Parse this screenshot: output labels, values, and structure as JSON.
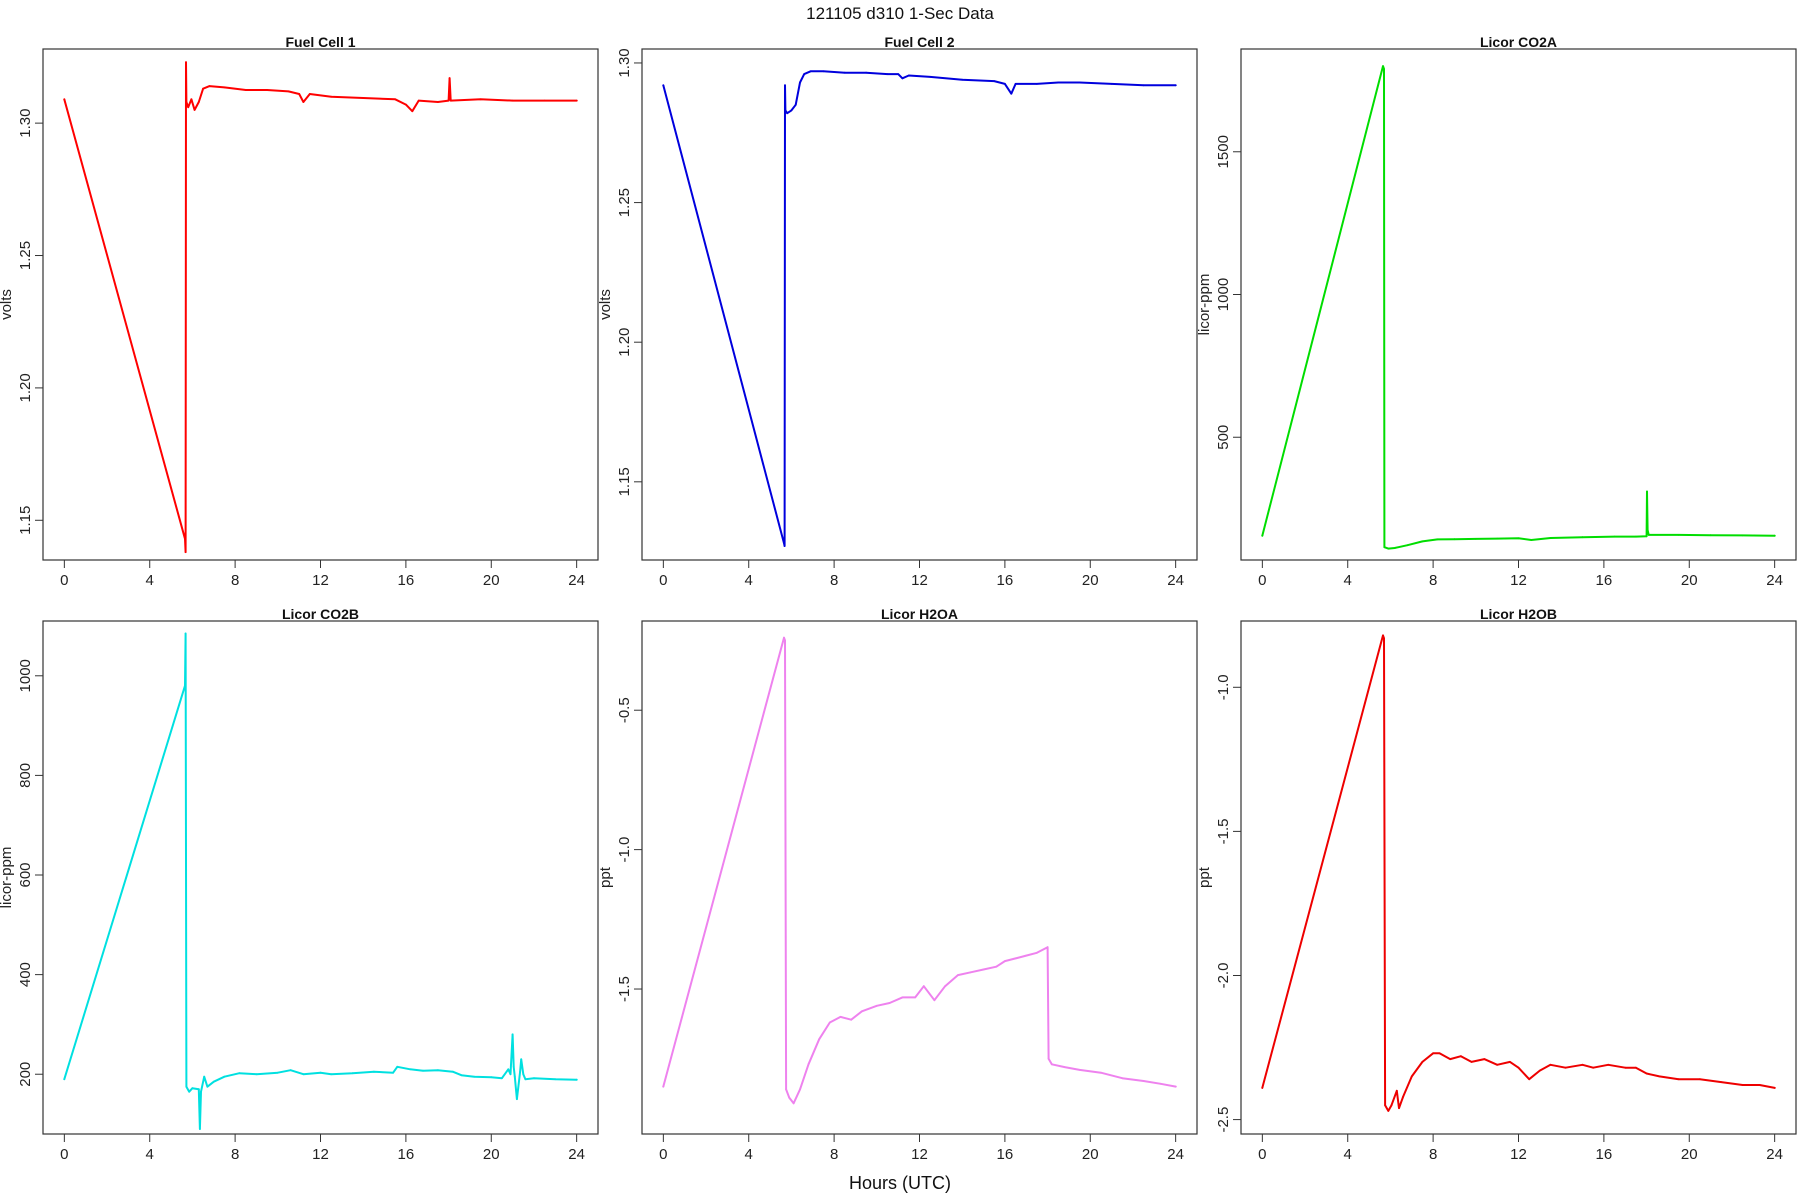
{
  "figure": {
    "title": "121105   d310   1-Sec Data",
    "xlabel": "Hours (UTC)"
  },
  "chart_data": [
    {
      "type": "line",
      "title": "Fuel Cell 1",
      "ylabel": "volts",
      "color": "#ff0000",
      "xlim": [
        -1,
        25
      ],
      "ylim": [
        1.135,
        1.328
      ],
      "xticks": [
        0,
        4,
        8,
        12,
        16,
        20,
        24
      ],
      "yticks": [
        1.15,
        1.2,
        1.25,
        1.3
      ],
      "ytick_labels": [
        "1.15",
        "1.20",
        "1.25",
        "1.30"
      ],
      "series": [
        {
          "x": [
            0,
            5.65,
            5.68,
            5.7,
            5.72,
            5.8,
            5.95,
            6.1,
            6.3,
            6.5,
            6.8,
            7.5,
            8.5,
            9.5,
            10.5,
            11.0,
            11.2,
            11.5,
            12.5,
            14.0,
            15.5,
            16.0,
            16.3,
            16.6,
            17.5,
            18.0,
            18.05,
            18.1,
            19.5,
            21,
            22.5,
            24
          ],
          "y": [
            1.309,
            1.143,
            1.138,
            1.323,
            1.308,
            1.306,
            1.309,
            1.305,
            1.308,
            1.313,
            1.314,
            1.3135,
            1.3125,
            1.3125,
            1.312,
            1.311,
            1.308,
            1.311,
            1.31,
            1.3095,
            1.309,
            1.307,
            1.3045,
            1.3085,
            1.308,
            1.3085,
            1.317,
            1.3085,
            1.309,
            1.3085,
            1.3085,
            1.3085
          ]
        }
      ]
    },
    {
      "type": "line",
      "title": "Fuel Cell 2",
      "ylabel": "volts",
      "color": "#0000dd",
      "xlim": [
        -1,
        25
      ],
      "ylim": [
        1.122,
        1.305
      ],
      "xticks": [
        0,
        4,
        8,
        12,
        16,
        20,
        24
      ],
      "yticks": [
        1.15,
        1.2,
        1.25,
        1.3
      ],
      "ytick_labels": [
        "1.15",
        "1.20",
        "1.25",
        "1.30"
      ],
      "series": [
        {
          "x": [
            0,
            5.65,
            5.68,
            5.7,
            5.72,
            5.8,
            6.0,
            6.2,
            6.4,
            6.6,
            6.9,
            7.5,
            8.5,
            9.5,
            10.5,
            11.0,
            11.2,
            11.5,
            12.5,
            14.0,
            15.5,
            16.0,
            16.3,
            16.5,
            17.5,
            18.5,
            19.5,
            21,
            22.5,
            24
          ],
          "y": [
            1.292,
            1.128,
            1.127,
            1.292,
            1.283,
            1.282,
            1.283,
            1.285,
            1.293,
            1.296,
            1.297,
            1.297,
            1.2965,
            1.2965,
            1.296,
            1.296,
            1.2945,
            1.2955,
            1.295,
            1.294,
            1.2935,
            1.2925,
            1.289,
            1.2925,
            1.2925,
            1.293,
            1.293,
            1.2925,
            1.292,
            1.292
          ]
        }
      ]
    },
    {
      "type": "line",
      "title": "Licor CO2A",
      "ylabel": "licor-ppm",
      "color": "#00dd00",
      "xlim": [
        -1,
        25
      ],
      "ylim": [
        70,
        1860
      ],
      "xticks": [
        0,
        4,
        8,
        12,
        16,
        20,
        24
      ],
      "yticks": [
        500,
        1000,
        1500
      ],
      "ytick_labels": [
        "500",
        "1000",
        "1500"
      ],
      "series": [
        {
          "x": [
            0,
            5.65,
            5.7,
            5.72,
            5.9,
            6.2,
            6.8,
            7.5,
            8.2,
            9.0,
            10,
            11,
            12,
            12.6,
            13.5,
            15,
            16.5,
            17.5,
            18.0,
            18.02,
            18.05,
            18.1,
            19.5,
            21,
            22.5,
            24
          ],
          "y": [
            155,
            1800,
            1790,
            115,
            110,
            112,
            122,
            135,
            142,
            143,
            144,
            145,
            146,
            140,
            147,
            150,
            152,
            152,
            153,
            310,
            175,
            158,
            158,
            157,
            156,
            155
          ]
        }
      ]
    },
    {
      "type": "line",
      "title": "Licor CO2B",
      "ylabel": "licor-ppm",
      "color": "#00e0e0",
      "xlim": [
        -1,
        25
      ],
      "ylim": [
        80,
        1110
      ],
      "xticks": [
        0,
        4,
        8,
        12,
        16,
        20,
        24
      ],
      "yticks": [
        200,
        400,
        600,
        800,
        1000
      ],
      "ytick_labels": [
        "200",
        "400",
        "600",
        "800",
        "1000"
      ],
      "series": [
        {
          "x": [
            0,
            5.65,
            5.68,
            5.72,
            5.85,
            6.0,
            6.3,
            6.35,
            6.4,
            6.55,
            6.7,
            7.0,
            7.5,
            8.2,
            9.0,
            10,
            10.6,
            11.2,
            12.0,
            12.5,
            13.5,
            14.5,
            15.4,
            15.6,
            16.2,
            16.8,
            17.5,
            18.2,
            18.6,
            19.2,
            20.0,
            20.5,
            20.8,
            20.9,
            21.0,
            21.05,
            21.1,
            21.2,
            21.35,
            21.4,
            21.5,
            21.6,
            22.0,
            23.0,
            24
          ],
          "y": [
            190,
            980,
            1085,
            175,
            165,
            172,
            170,
            90,
            165,
            195,
            175,
            185,
            195,
            202,
            200,
            203,
            208,
            200,
            203,
            200,
            202,
            205,
            203,
            215,
            210,
            207,
            208,
            205,
            198,
            195,
            194,
            192,
            210,
            200,
            280,
            215,
            195,
            150,
            205,
            230,
            200,
            190,
            192,
            190,
            189
          ]
        }
      ]
    },
    {
      "type": "line",
      "title": "Licor H2OA",
      "ylabel": "ppt",
      "color": "#ee82ee",
      "xlim": [
        -1,
        25
      ],
      "ylim": [
        -2.02,
        -0.18
      ],
      "xticks": [
        0,
        4,
        8,
        12,
        16,
        20,
        24
      ],
      "yticks": [
        -1.5,
        -1.0,
        -0.5
      ],
      "ytick_labels": [
        "-1.5",
        "-1.0",
        "-0.5"
      ],
      "series": [
        {
          "x": [
            0,
            5.65,
            5.7,
            5.75,
            5.9,
            6.1,
            6.4,
            6.8,
            7.3,
            7.8,
            8.3,
            8.8,
            9.3,
            10.0,
            10.6,
            11.2,
            11.8,
            12.2,
            12.7,
            13.2,
            13.8,
            14.4,
            15.0,
            15.6,
            16.0,
            16.5,
            17.0,
            17.5,
            18.0,
            18.05,
            18.2,
            18.8,
            19.5,
            20.5,
            21.5,
            22.5,
            23.3,
            24
          ],
          "y": [
            -1.85,
            -0.24,
            -0.25,
            -1.86,
            -1.89,
            -1.91,
            -1.86,
            -1.77,
            -1.68,
            -1.62,
            -1.6,
            -1.61,
            -1.58,
            -1.56,
            -1.55,
            -1.53,
            -1.53,
            -1.49,
            -1.54,
            -1.49,
            -1.45,
            -1.44,
            -1.43,
            -1.42,
            -1.4,
            -1.39,
            -1.38,
            -1.37,
            -1.35,
            -1.75,
            -1.77,
            -1.78,
            -1.79,
            -1.8,
            -1.82,
            -1.83,
            -1.84,
            -1.85
          ]
        }
      ]
    },
    {
      "type": "line",
      "title": "Licor H2OB",
      "ylabel": "ppt",
      "color": "#ee0000",
      "xlim": [
        -1,
        25
      ],
      "ylim": [
        -2.55,
        -0.77
      ],
      "xticks": [
        0,
        4,
        8,
        12,
        16,
        20,
        24
      ],
      "yticks": [
        -2.5,
        -2.0,
        -1.5,
        -1.0
      ],
      "ytick_labels": [
        "-2.5",
        "-2.0",
        "-1.5",
        "-1.0"
      ],
      "series": [
        {
          "x": [
            0,
            5.65,
            5.7,
            5.75,
            5.9,
            6.05,
            6.3,
            6.4,
            6.5,
            6.6,
            7.0,
            7.5,
            8.0,
            8.3,
            8.8,
            9.3,
            9.8,
            10.4,
            11.0,
            11.6,
            12.0,
            12.5,
            13.0,
            13.5,
            14.2,
            15.0,
            15.5,
            16.2,
            17.0,
            17.5,
            18.0,
            18.6,
            19.5,
            20.5,
            21.5,
            22.5,
            23.3,
            24
          ],
          "y": [
            -2.39,
            -0.82,
            -0.83,
            -2.45,
            -2.47,
            -2.45,
            -2.4,
            -2.46,
            -2.44,
            -2.42,
            -2.35,
            -2.3,
            -2.27,
            -2.27,
            -2.29,
            -2.28,
            -2.3,
            -2.29,
            -2.31,
            -2.3,
            -2.32,
            -2.36,
            -2.33,
            -2.31,
            -2.32,
            -2.31,
            -2.32,
            -2.31,
            -2.32,
            -2.32,
            -2.34,
            -2.35,
            -2.36,
            -2.36,
            -2.37,
            -2.38,
            -2.38,
            -2.39
          ]
        }
      ]
    }
  ]
}
